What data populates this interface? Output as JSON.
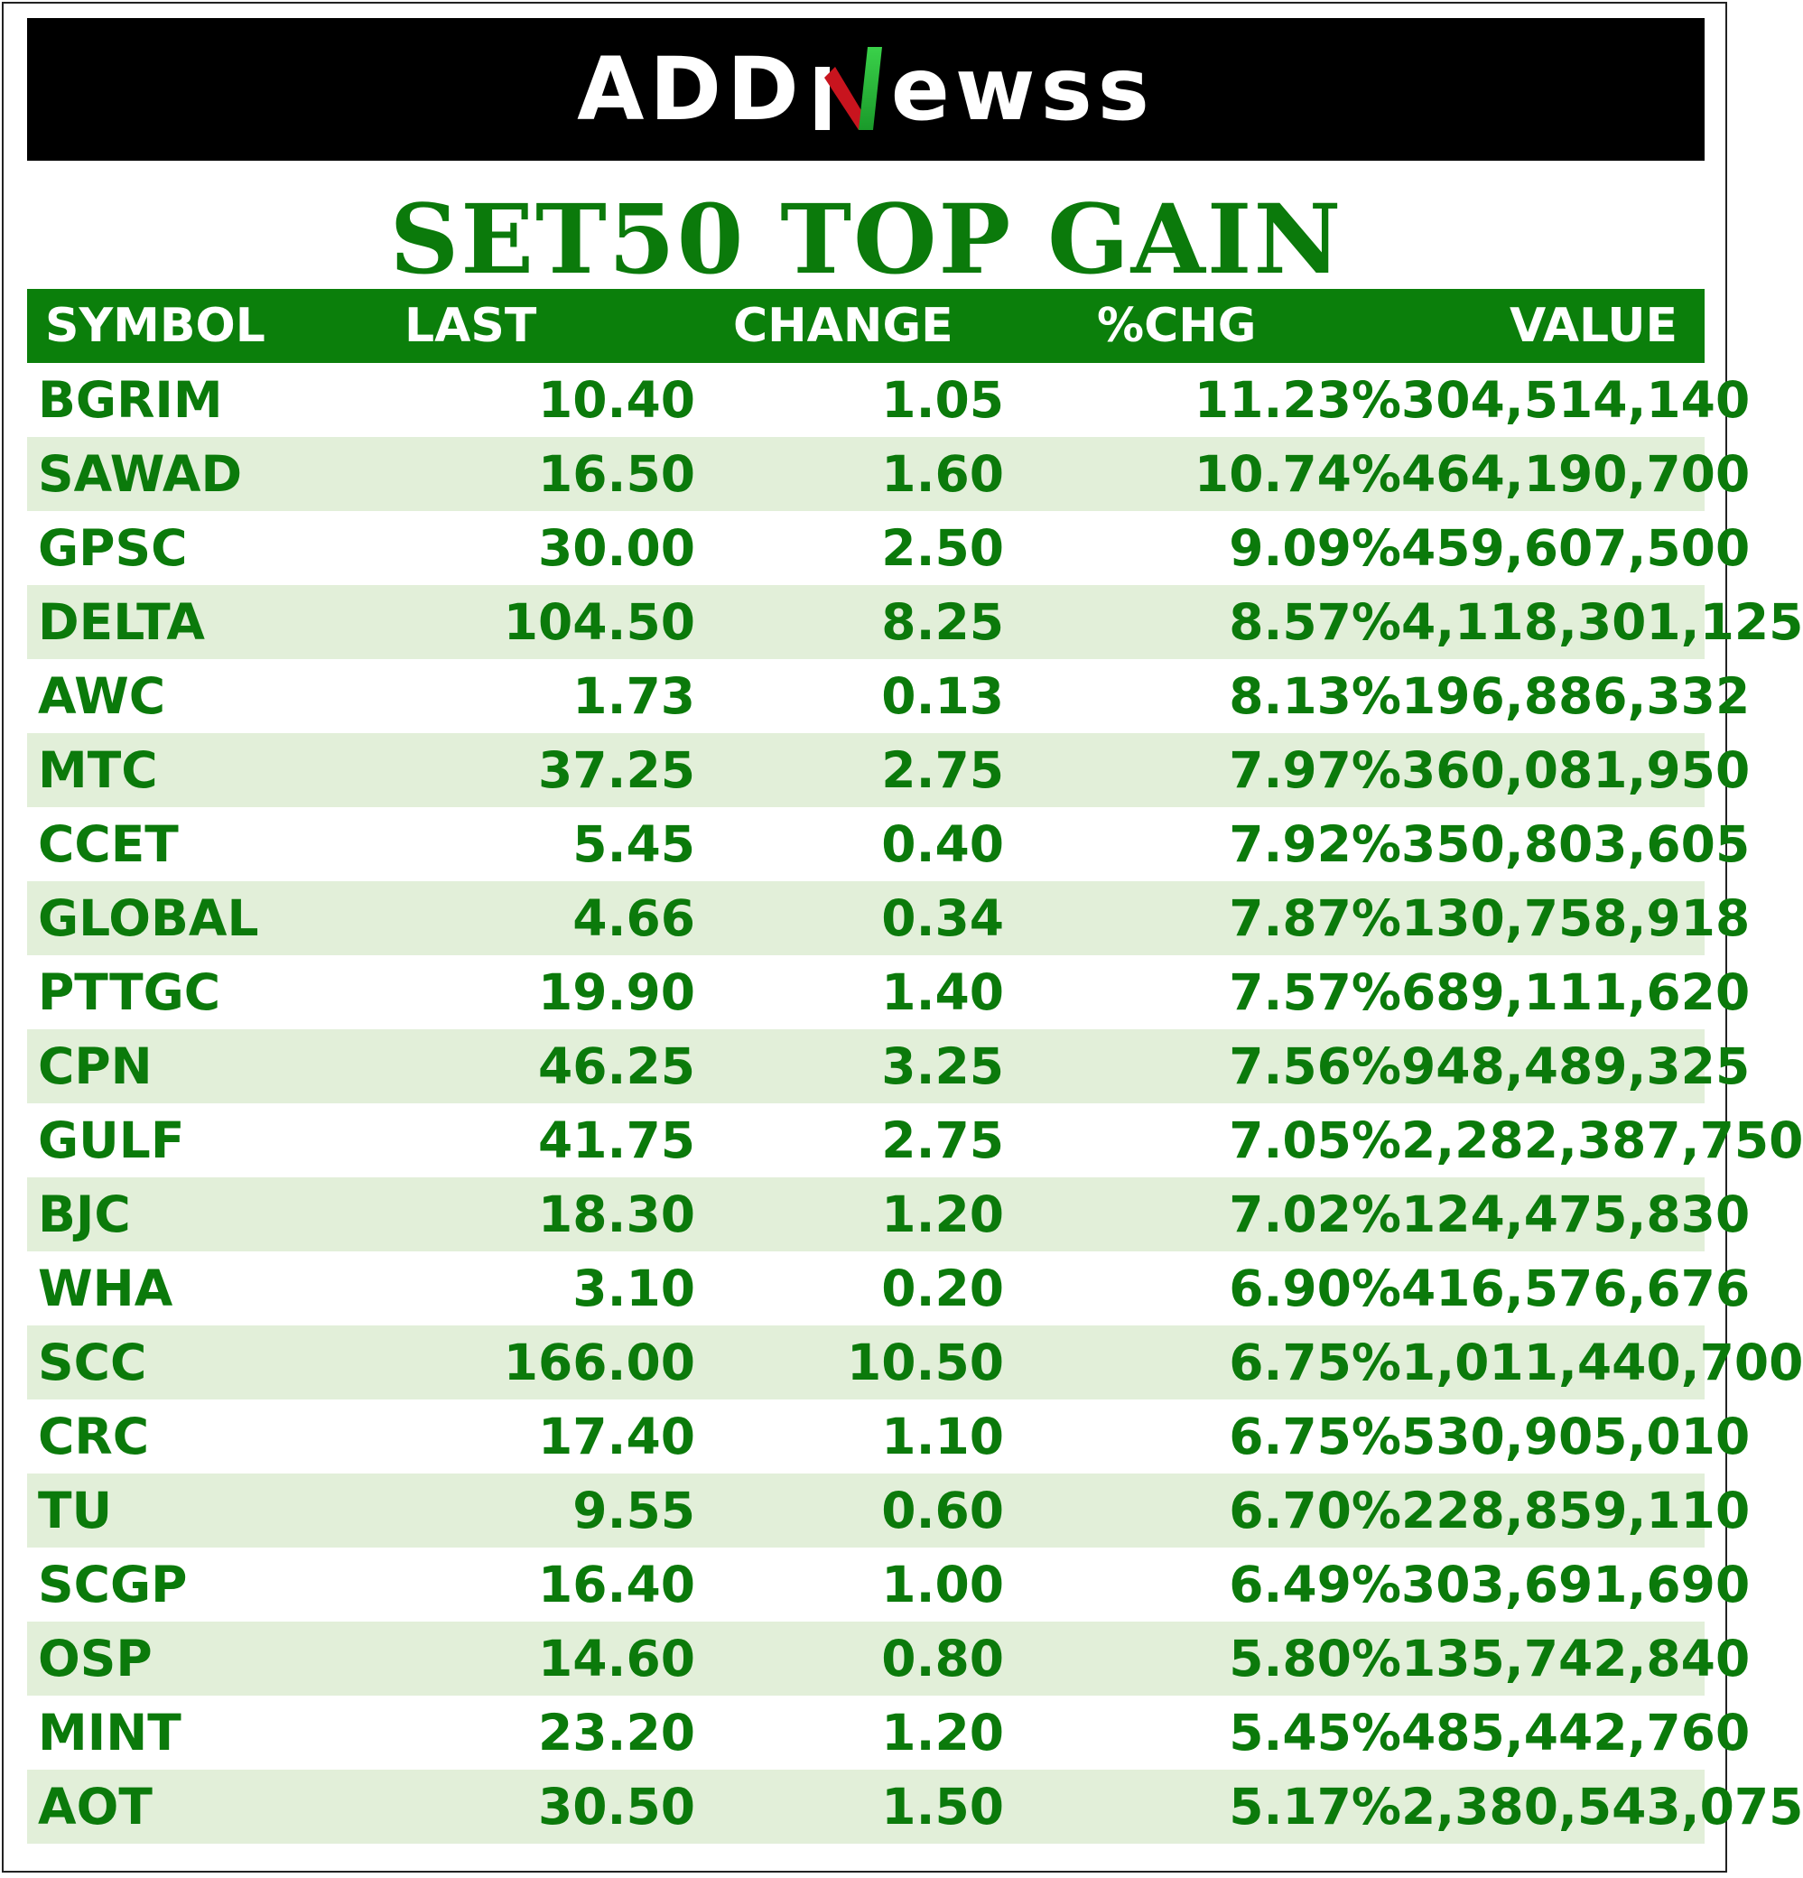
{
  "brand": {
    "logo_left": "ADD",
    "logo_right": "ewss"
  },
  "title": "SET50 TOP GAIN",
  "table": {
    "headers": [
      "SYMBOL",
      "LAST",
      "CHANGE",
      "%CHG",
      "VALUE"
    ],
    "rows": [
      [
        "BGRIM",
        "10.40",
        "1.05",
        "11.23%",
        "304,514,140"
      ],
      [
        "SAWAD",
        "16.50",
        "1.60",
        "10.74%",
        "464,190,700"
      ],
      [
        "GPSC",
        "30.00",
        "2.50",
        "9.09%",
        "459,607,500"
      ],
      [
        "DELTA",
        "104.50",
        "8.25",
        "8.57%",
        "4,118,301,125"
      ],
      [
        "AWC",
        "1.73",
        "0.13",
        "8.13%",
        "196,886,332"
      ],
      [
        "MTC",
        "37.25",
        "2.75",
        "7.97%",
        "360,081,950"
      ],
      [
        "CCET",
        "5.45",
        "0.40",
        "7.92%",
        "350,803,605"
      ],
      [
        "GLOBAL",
        "4.66",
        "0.34",
        "7.87%",
        "130,758,918"
      ],
      [
        "PTTGC",
        "19.90",
        "1.40",
        "7.57%",
        "689,111,620"
      ],
      [
        "CPN",
        "46.25",
        "3.25",
        "7.56%",
        "948,489,325"
      ],
      [
        "GULF",
        "41.75",
        "2.75",
        "7.05%",
        "2,282,387,750"
      ],
      [
        "BJC",
        "18.30",
        "1.20",
        "7.02%",
        "124,475,830"
      ],
      [
        "WHA",
        "3.10",
        "0.20",
        "6.90%",
        "416,576,676"
      ],
      [
        "SCC",
        "166.00",
        "10.50",
        "6.75%",
        "1,011,440,700"
      ],
      [
        "CRC",
        "17.40",
        "1.10",
        "6.75%",
        "530,905,010"
      ],
      [
        "TU",
        "9.55",
        "0.60",
        "6.70%",
        "228,859,110"
      ],
      [
        "SCGP",
        "16.40",
        "1.00",
        "6.49%",
        "303,691,690"
      ],
      [
        "OSP",
        "14.60",
        "0.80",
        "5.80%",
        "135,742,840"
      ],
      [
        "MINT",
        "23.20",
        "1.20",
        "5.45%",
        "485,442,760"
      ],
      [
        "AOT",
        "30.50",
        "1.50",
        "5.17%",
        "2,380,543,075"
      ]
    ]
  },
  "colors": {
    "header_bg": "#0b7f0b",
    "text_green": "#0b7a0b",
    "stripe": "#e2efd9",
    "banner_bg": "#000000"
  }
}
